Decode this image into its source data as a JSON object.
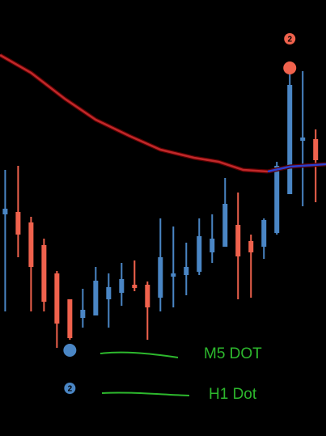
{
  "chart_data": {
    "type": "candlestick",
    "up_color": "#4a86c5",
    "down_color": "#f0624d",
    "xlim": [
      -0.4,
      24.8
    ],
    "ylim": [
      0,
      539
    ],
    "candles": [
      {
        "open": 274,
        "high": 329,
        "low": 154,
        "close": 281
      },
      {
        "open": 277,
        "high": 334,
        "low": 221,
        "close": 249
      },
      {
        "open": 264,
        "high": 271,
        "low": 154,
        "close": 209
      },
      {
        "open": 236,
        "high": 244,
        "low": 154,
        "close": 166
      },
      {
        "open": 201,
        "high": 204,
        "low": 109,
        "close": 139
      },
      {
        "open": 169,
        "high": 169,
        "low": 119,
        "close": 121
      },
      {
        "open": 146,
        "high": 182,
        "low": 134,
        "close": 156
      },
      {
        "open": 149,
        "high": 209,
        "low": 149,
        "close": 192
      },
      {
        "open": 169,
        "high": 201,
        "low": 134,
        "close": 184
      },
      {
        "open": 177,
        "high": 214,
        "low": 161,
        "close": 194
      },
      {
        "open": 187,
        "high": 217,
        "low": 179,
        "close": 183
      },
      {
        "open": 187,
        "high": 191,
        "low": 119,
        "close": 159
      },
      {
        "open": 171,
        "high": 269,
        "low": 154,
        "close": 221
      },
      {
        "open": 197,
        "high": 259,
        "low": 159,
        "close": 201
      },
      {
        "open": 199,
        "high": 239,
        "low": 174,
        "close": 209
      },
      {
        "open": 203,
        "high": 269,
        "low": 199,
        "close": 247
      },
      {
        "open": 227,
        "high": 274,
        "low": 214,
        "close": 244
      },
      {
        "open": 234,
        "high": 319,
        "low": 234,
        "close": 287
      },
      {
        "open": 261,
        "high": 301,
        "low": 169,
        "close": 222
      },
      {
        "open": 241,
        "high": 249,
        "low": 171,
        "close": 227
      },
      {
        "open": 234,
        "high": 269,
        "low": 219,
        "close": 267
      },
      {
        "open": 251,
        "high": 339,
        "low": 249,
        "close": 334
      },
      {
        "open": 299,
        "high": 454,
        "low": 299,
        "close": 434
      },
      {
        "open": 365,
        "high": 451,
        "low": 284,
        "close": 369
      },
      {
        "open": 367,
        "high": 379,
        "low": 289,
        "close": 341
      }
    ],
    "lines": [
      {
        "color": "#c0282a",
        "x": [
          -0.4,
          2,
          4.6,
          7,
          9.6,
          12,
          14.6,
          16.5,
          18.4,
          20.3
        ],
        "values": [
          471,
          449,
          417,
          391,
          371,
          354,
          344,
          339,
          329,
          327
        ]
      },
      {
        "color": "#2a3fd0",
        "x": [
          20.3,
          22,
          24.8
        ],
        "values": [
          327,
          333,
          336
        ]
      }
    ],
    "markers": [
      {
        "x": 22,
        "value": 455,
        "color": "#f0624d",
        "label": "2"
      },
      {
        "x": 5,
        "value": 106,
        "color": "#4a86c5",
        "label": "2"
      }
    ],
    "annotations": [
      "M5 DOT",
      "H1 Dot"
    ]
  }
}
